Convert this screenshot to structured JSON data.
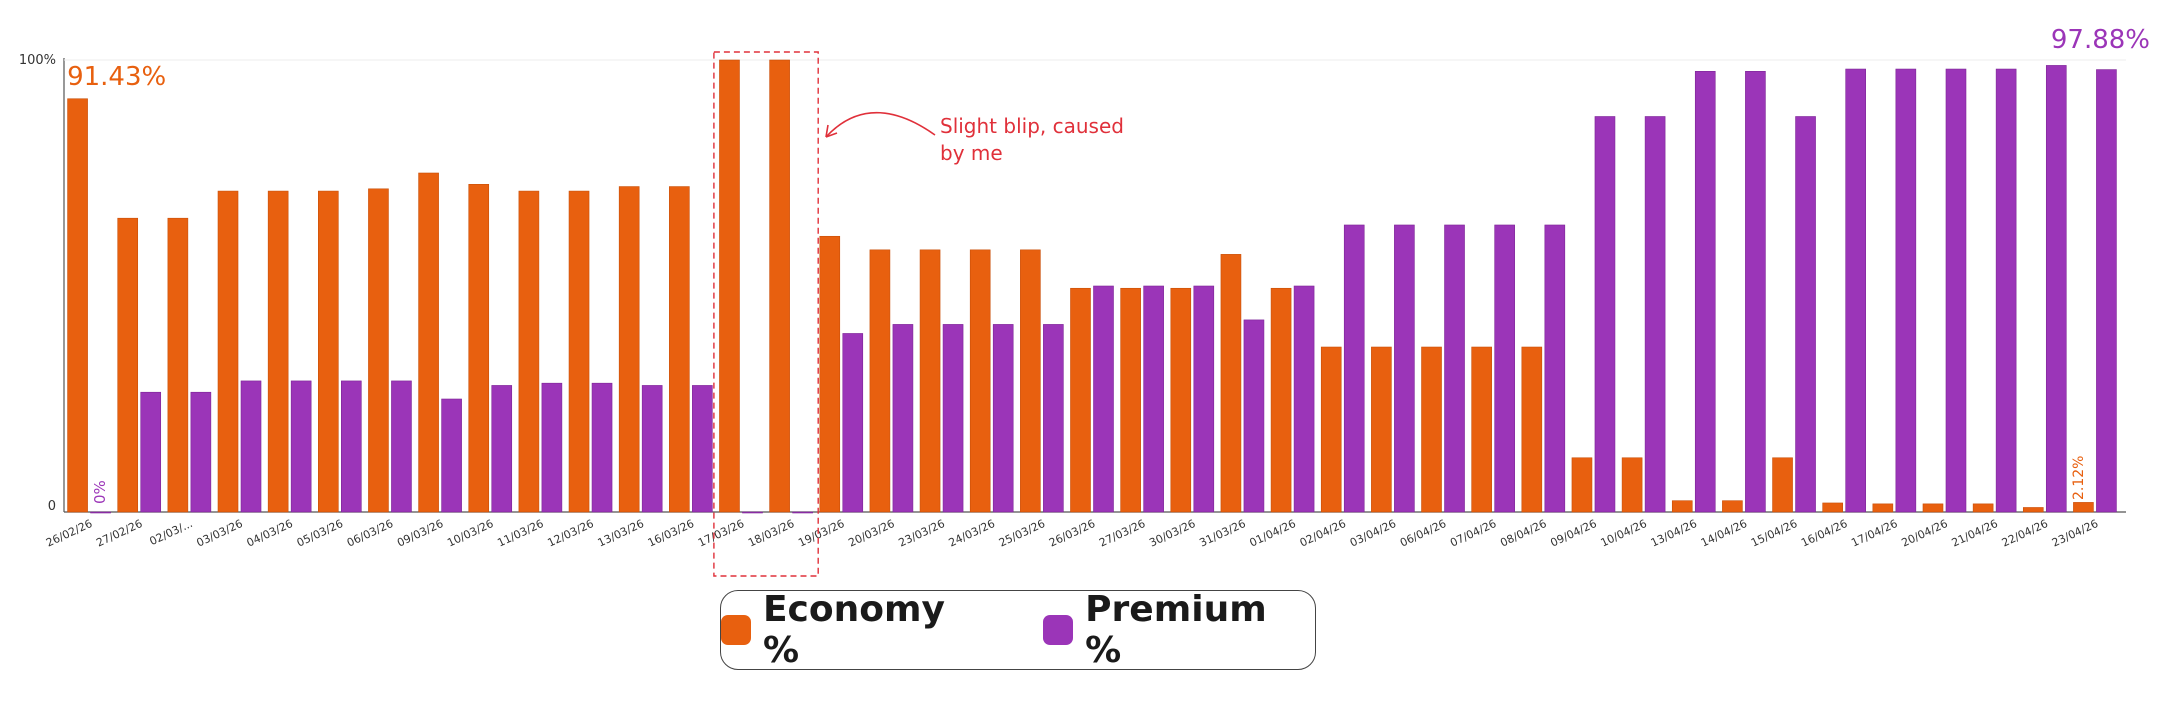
{
  "chart_data": {
    "type": "bar",
    "categories": [
      "26/02/26",
      "27/02/26",
      "02/03/...",
      "03/03/26",
      "04/03/26",
      "05/03/26",
      "06/03/26",
      "09/03/26",
      "10/03/26",
      "11/03/26",
      "12/03/26",
      "13/03/26",
      "16/03/26",
      "17/03/26",
      "18/03/26",
      "19/03/26",
      "20/03/26",
      "23/03/26",
      "24/03/26",
      "25/03/26",
      "26/03/26",
      "27/03/26",
      "30/03/26",
      "31/03/26",
      "01/04/26",
      "02/04/26",
      "03/04/26",
      "06/04/26",
      "07/04/26",
      "08/04/26",
      "09/04/26",
      "10/04/26",
      "13/04/26",
      "14/04/26",
      "15/04/26",
      "16/04/26",
      "17/04/26",
      "20/04/26",
      "21/04/26",
      "22/04/26",
      "23/04/26"
    ],
    "series": [
      {
        "name": "Economy %",
        "color": "#e8600f",
        "values": [
          91.43,
          65,
          65,
          71,
          71,
          71,
          71.5,
          75,
          72.5,
          71,
          71,
          72,
          72,
          100,
          100,
          61,
          58,
          58,
          58,
          58,
          49.5,
          49.5,
          49.5,
          57,
          49.5,
          36.5,
          36.5,
          36.5,
          36.5,
          36.5,
          12,
          12,
          2.5,
          2.5,
          12,
          2,
          1.8,
          1.8,
          1.8,
          1,
          2.12
        ]
      },
      {
        "name": "Premium %",
        "color": "#9b35b8",
        "values": [
          0,
          26.5,
          26.5,
          29,
          29,
          29,
          29,
          25,
          28,
          28.5,
          28.5,
          28,
          28,
          0,
          0,
          39.5,
          41.5,
          41.5,
          41.5,
          41.5,
          50,
          50,
          50,
          42.5,
          50,
          63.5,
          63.5,
          63.5,
          63.5,
          63.5,
          87.5,
          87.5,
          97.5,
          97.5,
          87.5,
          98,
          98,
          98,
          98,
          98.8,
          97.88
        ]
      }
    ],
    "yticks": [
      "100%",
      "0"
    ],
    "ylim": [
      0,
      100
    ],
    "grid": false,
    "legend": "bottom",
    "annotations": {
      "first_economy": "91.43%",
      "first_premium": "0%",
      "last_premium": "97.88%",
      "last_economy": "2.12%",
      "blip_note": "Slight blip, caused by me"
    }
  },
  "legend": {
    "economy_label": "Economy %",
    "premium_label": "Premium %"
  }
}
